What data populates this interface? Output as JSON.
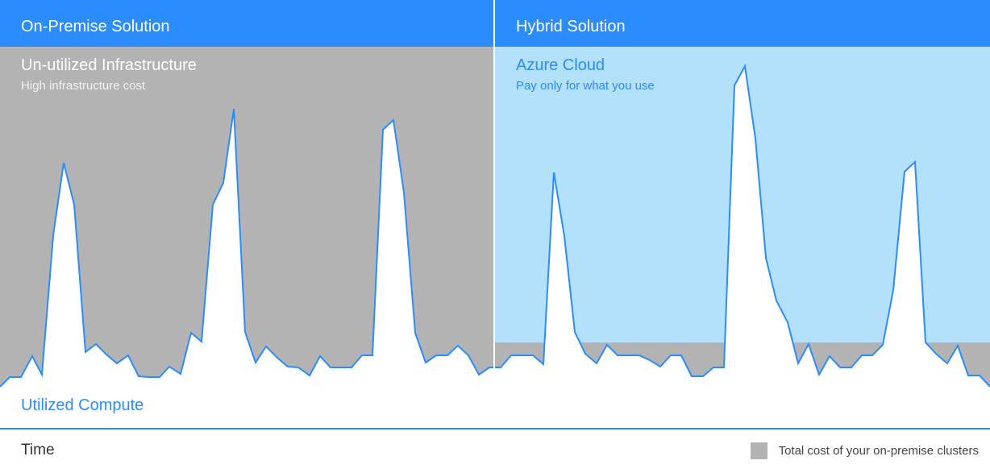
{
  "panels": {
    "left": {
      "header": "On-Premise Solution",
      "area_title": "Un-utilized Infrastructure",
      "area_subtitle": "High infrastructure cost"
    },
    "right": {
      "header": "Hybrid Solution",
      "area_title": "Azure Cloud",
      "area_subtitle": "Pay only for what you use"
    }
  },
  "utilized_label": "Utilized Compute",
  "axis": {
    "x_label": "Time"
  },
  "legend": {
    "label": "Total cost of your on-premise clusters"
  },
  "colors": {
    "brand_blue": "#2b8cfd",
    "on_premise_gray": "#b3b3b3",
    "cloud_light_blue": "#b3e0fb",
    "utilized_fill": "#ffffff"
  }
}
